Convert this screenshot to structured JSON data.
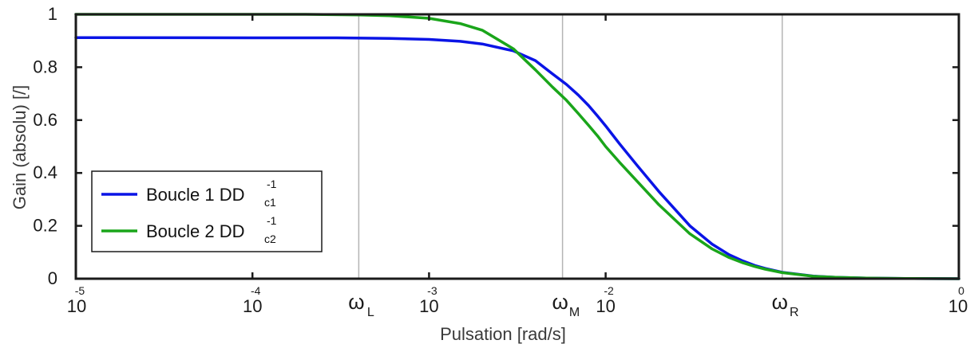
{
  "chart_data": {
    "type": "line",
    "xscale": "log",
    "xlim": [
      1e-05,
      1
    ],
    "ylim": [
      0,
      1
    ],
    "xlabel": "Pulsation [rad/s]",
    "ylabel": "Gain (absolu) [/]",
    "grid": false,
    "legend_position": "lower-left",
    "xticks": [
      {
        "value": 1e-05,
        "base": "10",
        "exp": "-5"
      },
      {
        "value": 0.0001,
        "base": "10",
        "exp": "-4"
      },
      {
        "value": 0.001,
        "base": "10",
        "exp": "-3"
      },
      {
        "value": 0.01,
        "base": "10",
        "exp": "-2"
      },
      {
        "value": 1,
        "base": "10",
        "exp": "0"
      }
    ],
    "yticks": [
      {
        "value": 0,
        "label": "0"
      },
      {
        "value": 0.2,
        "label": "0.2"
      },
      {
        "value": 0.4,
        "label": "0.4"
      },
      {
        "value": 0.6,
        "label": "0.6"
      },
      {
        "value": 0.8,
        "label": "0.8"
      },
      {
        "value": 1,
        "label": "1"
      }
    ],
    "markers": [
      {
        "value": 0.0004,
        "symbol": "ω",
        "sub": "L"
      },
      {
        "value": 0.0057,
        "symbol": "ω",
        "sub": "M"
      },
      {
        "value": 0.1,
        "symbol": "ω",
        "sub": "R"
      }
    ],
    "series": [
      {
        "name": "Boucle 1",
        "legend_main": "Boucle 1  DD",
        "legend_sub": "c1",
        "legend_sup": "-1",
        "color": "#0a14e6",
        "x": [
          1e-05,
          0.0001,
          0.0003,
          0.0006,
          0.001,
          0.0015,
          0.002,
          0.003,
          0.004,
          0.005,
          0.006,
          0.007,
          0.008,
          0.009,
          0.01,
          0.012,
          0.015,
          0.02,
          0.03,
          0.04,
          0.05,
          0.06,
          0.07,
          0.08,
          0.1,
          0.15,
          0.2,
          0.3,
          0.5,
          1
        ],
        "y": [
          0.912,
          0.911,
          0.911,
          0.909,
          0.905,
          0.898,
          0.888,
          0.862,
          0.825,
          0.775,
          0.735,
          0.695,
          0.655,
          0.615,
          0.578,
          0.51,
          0.43,
          0.33,
          0.2,
          0.131,
          0.091,
          0.067,
          0.05,
          0.039,
          0.024,
          0.01,
          0.005,
          0.002,
          0.001,
          0.0
        ]
      },
      {
        "name": "Boucle 2",
        "legend_main": "Boucle 2  DD",
        "legend_sub": "c2",
        "legend_sup": "-1",
        "color": "#1aa51a",
        "x": [
          1e-05,
          0.0002,
          0.0004,
          0.0006,
          0.001,
          0.0015,
          0.002,
          0.003,
          0.004,
          0.005,
          0.006,
          0.007,
          0.008,
          0.009,
          0.01,
          0.012,
          0.015,
          0.02,
          0.03,
          0.04,
          0.05,
          0.06,
          0.07,
          0.08,
          0.1,
          0.15,
          0.2,
          0.3,
          0.5,
          1
        ],
        "y": [
          1.0,
          1.0,
          0.998,
          0.995,
          0.985,
          0.965,
          0.94,
          0.87,
          0.79,
          0.725,
          0.675,
          0.625,
          0.58,
          0.54,
          0.5,
          0.44,
          0.37,
          0.28,
          0.17,
          0.113,
          0.08,
          0.06,
          0.046,
          0.036,
          0.023,
          0.009,
          0.005,
          0.002,
          0.001,
          0.0
        ]
      }
    ]
  }
}
